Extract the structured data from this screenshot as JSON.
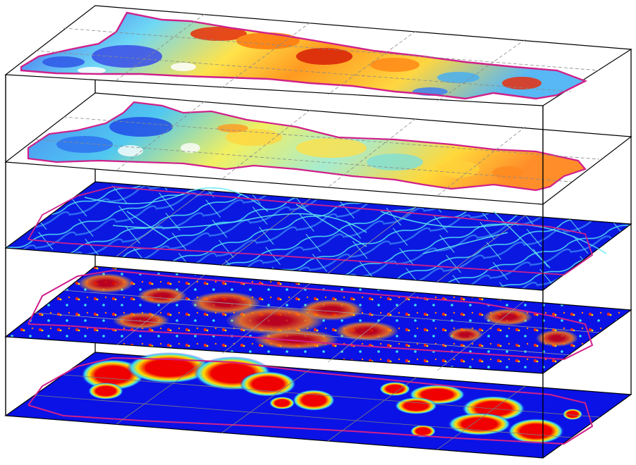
{
  "figure": {
    "description_free": true,
    "layers": [
      {
        "id": "layer-1",
        "colormap": "jet",
        "pattern": "patchy-high"
      },
      {
        "id": "layer-2",
        "colormap": "jet",
        "pattern": "patchy-mid"
      },
      {
        "id": "layer-3",
        "colormap": "jet",
        "pattern": "streaks-low"
      },
      {
        "id": "layer-4",
        "colormap": "jet",
        "pattern": "speckle-hotspots"
      },
      {
        "id": "layer-5",
        "colormap": "jet",
        "pattern": "blob-hotspots"
      }
    ],
    "colors": {
      "box_edge": "#000000",
      "grid": "#9a9a9a",
      "boundary": "#d0208a",
      "jet_low": "#0a14e6",
      "jet_cyan": "#40e0f0",
      "jet_yellow": "#ffe000",
      "jet_high": "#e00000"
    }
  }
}
